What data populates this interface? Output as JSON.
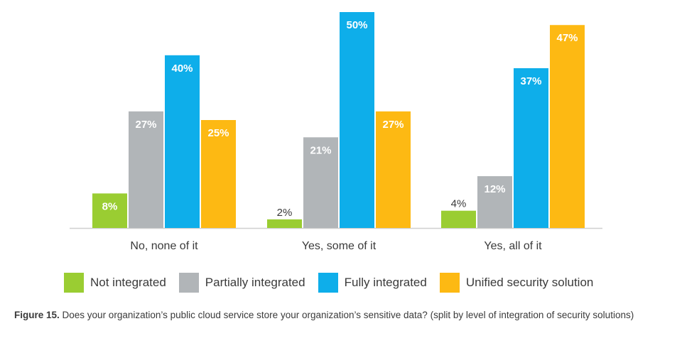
{
  "chart_data": {
    "type": "bar",
    "categories": [
      "No, none of it",
      "Yes, some of it",
      "Yes, all of it"
    ],
    "series": [
      {
        "name": "Not integrated",
        "values": [
          8,
          2,
          4
        ],
        "color": "#9ACD32",
        "value_labels": [
          "8%",
          "2%",
          "4%"
        ]
      },
      {
        "name": "Partially integrated",
        "values": [
          27,
          21,
          12
        ],
        "color": "#B1B5B8",
        "value_labels": [
          "27%",
          "21%",
          "12%"
        ]
      },
      {
        "name": "Fully integrated",
        "values": [
          40,
          50,
          37
        ],
        "color": "#0EAEEA",
        "value_labels": [
          "40%",
          "50%",
          "37%"
        ]
      },
      {
        "name": "Unified security solution",
        "values": [
          25,
          27,
          47
        ],
        "color": "#FDB913",
        "value_labels": [
          "25%",
          "27%",
          "47%"
        ]
      }
    ],
    "ylim": [
      0,
      50
    ],
    "grid": false,
    "legend": "bottom"
  },
  "caption": {
    "label": "Figure 15.",
    "text": " Does your organization’s public cloud service store your organization’s sensitive data? (split by level of integration of security solutions)"
  }
}
